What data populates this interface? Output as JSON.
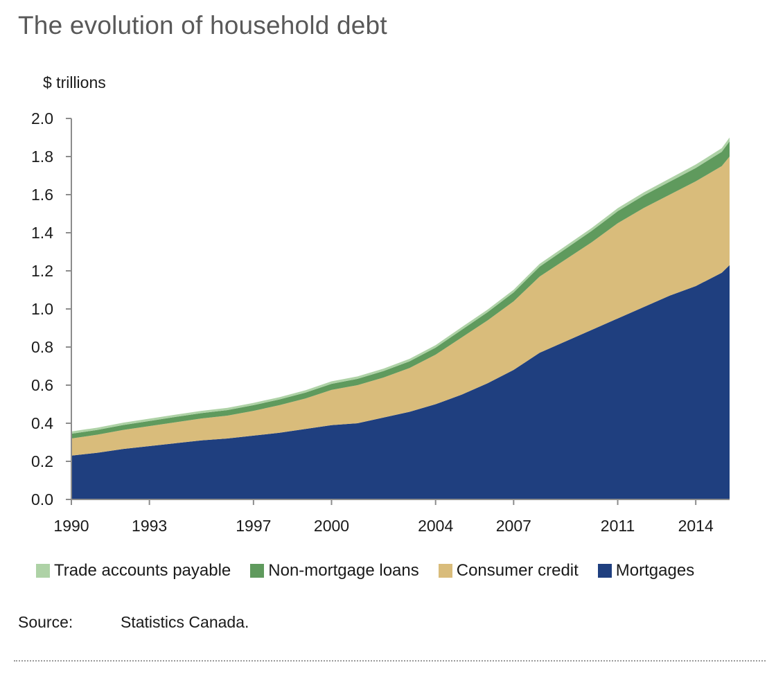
{
  "chart_data": {
    "type": "area",
    "stacked": true,
    "title": "The evolution of household debt",
    "ylabel": "$ trillions",
    "xlabel": "",
    "xlim": [
      1990,
      2015.3
    ],
    "ylim": [
      0,
      2.0
    ],
    "yticks": [
      "0.0",
      "0.2",
      "0.4",
      "0.6",
      "0.8",
      "1.0",
      "1.2",
      "1.4",
      "1.6",
      "1.8",
      "2.0"
    ],
    "xticks": [
      {
        "value": 1990,
        "label": "1990"
      },
      {
        "value": 1993,
        "label": "1993"
      },
      {
        "value": 1997,
        "label": "1997"
      },
      {
        "value": 2000,
        "label": "2000"
      },
      {
        "value": 2004,
        "label": "2004"
      },
      {
        "value": 2007,
        "label": "2007"
      },
      {
        "value": 2011,
        "label": "2011"
      },
      {
        "value": 2014,
        "label": "2014"
      }
    ],
    "legend_position": "bottom",
    "x": [
      1990,
      1991,
      1992,
      1993,
      1994,
      1995,
      1996,
      1997,
      1998,
      1999,
      2000,
      2001,
      2002,
      2003,
      2004,
      2005,
      2006,
      2007,
      2008,
      2009,
      2010,
      2011,
      2012,
      2013,
      2014,
      2015,
      2015.3
    ],
    "series": [
      {
        "name": "Mortgages",
        "color": "#1f3f7f",
        "values": [
          0.23,
          0.245,
          0.265,
          0.28,
          0.295,
          0.31,
          0.32,
          0.335,
          0.35,
          0.37,
          0.39,
          0.4,
          0.43,
          0.46,
          0.5,
          0.55,
          0.61,
          0.68,
          0.77,
          0.83,
          0.89,
          0.95,
          1.01,
          1.07,
          1.12,
          1.19,
          1.23
        ]
      },
      {
        "name": "Consumer credit",
        "color": "#d9bc7b",
        "values": [
          0.09,
          0.095,
          0.1,
          0.105,
          0.11,
          0.115,
          0.12,
          0.13,
          0.145,
          0.16,
          0.185,
          0.2,
          0.21,
          0.23,
          0.26,
          0.3,
          0.33,
          0.36,
          0.4,
          0.43,
          0.46,
          0.5,
          0.52,
          0.53,
          0.55,
          0.56,
          0.57
        ]
      },
      {
        "name": "Non-mortgage loans",
        "color": "#5f9a5d",
        "values": [
          0.025,
          0.025,
          0.026,
          0.027,
          0.028,
          0.028,
          0.029,
          0.03,
          0.03,
          0.031,
          0.032,
          0.033,
          0.034,
          0.035,
          0.037,
          0.04,
          0.043,
          0.047,
          0.052,
          0.056,
          0.06,
          0.063,
          0.066,
          0.068,
          0.07,
          0.075,
          0.08
        ]
      },
      {
        "name": "Trade accounts payable",
        "color": "#aed2a6",
        "values": [
          0.012,
          0.012,
          0.012,
          0.012,
          0.012,
          0.012,
          0.012,
          0.012,
          0.012,
          0.012,
          0.013,
          0.013,
          0.013,
          0.013,
          0.013,
          0.014,
          0.014,
          0.014,
          0.015,
          0.015,
          0.015,
          0.016,
          0.016,
          0.017,
          0.018,
          0.019,
          0.02
        ]
      }
    ],
    "legend_order": [
      "Trade accounts payable",
      "Non-mortgage loans",
      "Consumer credit",
      "Mortgages"
    ]
  },
  "source": {
    "label": "Source:",
    "text": "Statistics Canada."
  }
}
